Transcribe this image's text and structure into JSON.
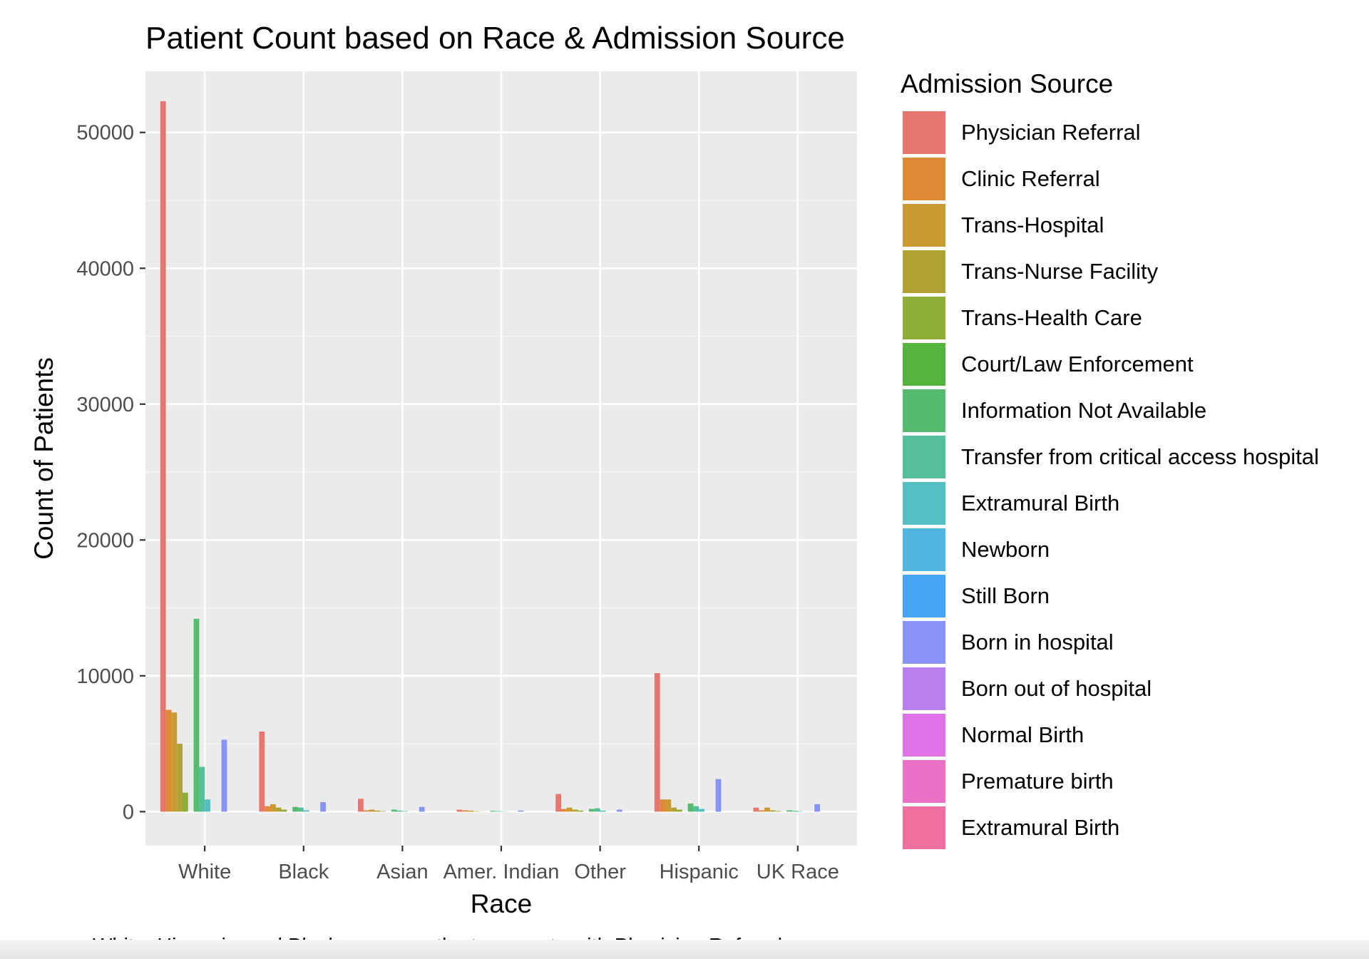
{
  "chart_data": {
    "type": "bar",
    "title": "Patient Count based on Race & Admission Source",
    "xlabel": "Race",
    "ylabel": "Count of Patients",
    "caption": "White, Hispanic, and Black races are the top counts with Physician Referral.",
    "legend_title": "Admission Source",
    "legend_position": "right",
    "grid": true,
    "ylim": [
      -2500,
      54500
    ],
    "yticks": [
      0,
      10000,
      20000,
      30000,
      40000,
      50000
    ],
    "yticklabels": [
      "0",
      "10000",
      "20000",
      "30000",
      "40000",
      "50000"
    ],
    "categories": [
      "White",
      "Black",
      "Asian",
      "Amer. Indian",
      "Other",
      "Hispanic",
      "UK Race"
    ],
    "series": [
      {
        "name": "Physician Referral",
        "color": "#E7766E",
        "values": [
          52300,
          5900,
          950,
          150,
          1300,
          10200,
          300
        ]
      },
      {
        "name": "Clinic Referral",
        "color": "#DE8A36",
        "values": [
          7500,
          400,
          100,
          100,
          200,
          900,
          100
        ]
      },
      {
        "name": "Trans-Hospital",
        "color": "#C99A32",
        "values": [
          7300,
          550,
          150,
          80,
          300,
          900,
          300
        ]
      },
      {
        "name": "Trans-Nurse Facility",
        "color": "#AFA433",
        "values": [
          5000,
          300,
          80,
          30,
          150,
          300,
          100
        ]
      },
      {
        "name": "Trans-Health Care",
        "color": "#8FAE35",
        "values": [
          1400,
          150,
          40,
          10,
          80,
          150,
          50
        ]
      },
      {
        "name": "Court/Law Enforcement",
        "color": "#53B53E",
        "values": [
          0,
          0,
          0,
          0,
          0,
          0,
          0
        ]
      },
      {
        "name": "Information Not Available",
        "color": "#55BB6E",
        "values": [
          14200,
          350,
          150,
          60,
          200,
          600,
          100
        ]
      },
      {
        "name": "Transfer from critical access hospital",
        "color": "#55BF9A",
        "values": [
          3300,
          300,
          80,
          40,
          250,
          400,
          60
        ]
      },
      {
        "name": "Extramural Birth",
        "color": "#54BEC2",
        "values": [
          900,
          100,
          40,
          20,
          80,
          200,
          30
        ]
      },
      {
        "name": "Newborn",
        "color": "#4FB6E0",
        "values": [
          0,
          0,
          0,
          0,
          0,
          0,
          0
        ]
      },
      {
        "name": "Still Born",
        "color": "#45A6F7",
        "values": [
          0,
          0,
          0,
          0,
          0,
          0,
          0
        ]
      },
      {
        "name": "Born in hospital",
        "color": "#8893F6",
        "values": [
          5300,
          700,
          350,
          80,
          150,
          2400,
          550
        ]
      },
      {
        "name": "Born out of hospital",
        "color": "#B97FEF",
        "values": [
          0,
          0,
          0,
          0,
          0,
          0,
          0
        ]
      },
      {
        "name": "Normal Birth",
        "color": "#DE72E6",
        "values": [
          0,
          0,
          0,
          0,
          0,
          0,
          0
        ]
      },
      {
        "name": "Premature birth",
        "color": "#EC6FC6",
        "values": [
          0,
          0,
          0,
          0,
          0,
          0,
          0
        ]
      },
      {
        "name": "Extramural Birth",
        "color": "#EF6FA0",
        "values": [
          0,
          0,
          0,
          0,
          0,
          0,
          0
        ]
      }
    ]
  }
}
